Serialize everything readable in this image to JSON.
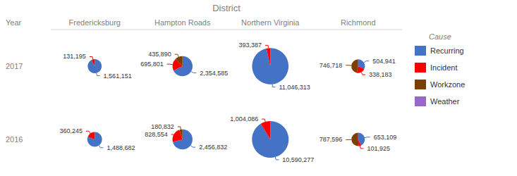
{
  "chart_data": {
    "type": "pie",
    "title": "District",
    "ylabel": "Year",
    "legend": "right",
    "legend_title": "Cause",
    "data_labels": true,
    "categories": [
      "Recurring",
      "Incident",
      "Workzone",
      "Weather"
    ],
    "colors": [
      "#4472C4",
      "#FF0000",
      "#7B3F00",
      "#9966CC"
    ],
    "rows": [
      "2017",
      "2016"
    ],
    "columns": [
      "Fredericksburg",
      "Hampton Roads",
      "Northern Virginia",
      "Richmond"
    ],
    "pies": [
      {
        "row": "2017",
        "column": "Fredericksburg",
        "values": [
          1561151,
          131195,
          0,
          0
        ],
        "value_labels": [
          "1,561,151",
          "131,195",
          null,
          null
        ]
      },
      {
        "row": "2017",
        "column": "Hampton Roads",
        "values": [
          2354585,
          695801,
          435890,
          0
        ],
        "value_labels": [
          "2,354,585",
          "695,801",
          "435,890",
          null
        ]
      },
      {
        "row": "2017",
        "column": "Northern Virginia",
        "values": [
          11046313,
          393387,
          0,
          0
        ],
        "value_labels": [
          "11,046,313",
          "393,387",
          null,
          null
        ]
      },
      {
        "row": "2017",
        "column": "Richmond",
        "values": [
          504941,
          338183,
          746718,
          0
        ],
        "value_labels": [
          "504,941",
          "338,183",
          "746,718",
          null
        ]
      },
      {
        "row": "2016",
        "column": "Fredericksburg",
        "values": [
          1488682,
          360245,
          0,
          0
        ],
        "value_labels": [
          "1,488,682",
          "360,245",
          null,
          null
        ]
      },
      {
        "row": "2016",
        "column": "Hampton Roads",
        "values": [
          2456832,
          828554,
          180832,
          0
        ],
        "value_labels": [
          "2,456,832",
          "828,554",
          "180,832",
          null
        ]
      },
      {
        "row": "2016",
        "column": "Northern Virginia",
        "values": [
          10590277,
          1004086,
          0,
          0
        ],
        "value_labels": [
          "10,590,277",
          "1,004,086",
          null,
          null
        ]
      },
      {
        "row": "2016",
        "column": "Richmond",
        "values": [
          653109,
          101925,
          787596,
          0
        ],
        "value_labels": [
          "653,109",
          "101,925",
          "787,596",
          null
        ]
      }
    ]
  }
}
